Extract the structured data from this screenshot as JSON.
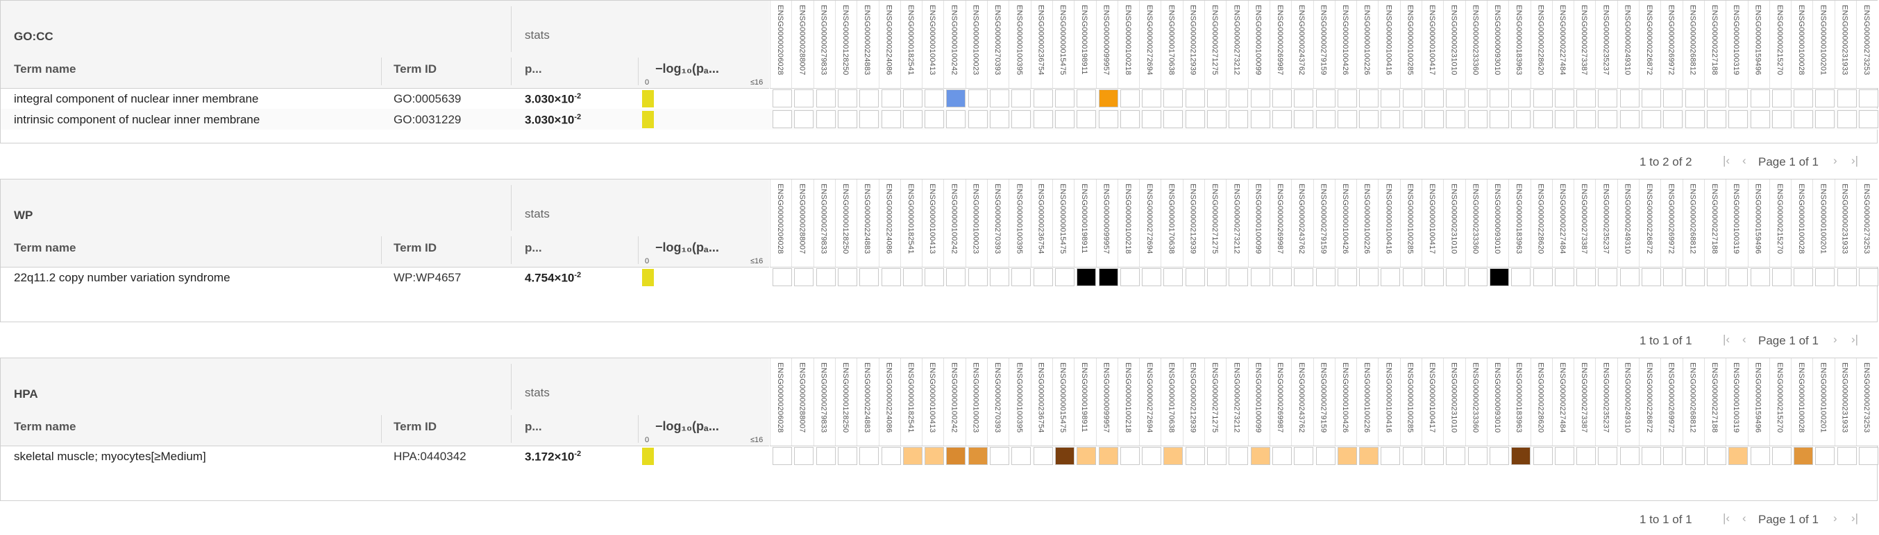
{
  "genes_a": [
    "ENSG00000206028",
    "ENSG00000288007",
    "ENSG00000279833",
    "ENSG00000128250",
    "ENSG00000224883",
    "ENSG00000224086",
    "ENSG00000182541",
    "ENSG00000100413",
    "ENSG00000100242",
    "ENSG00000100023",
    "ENSG00000270393",
    "ENSG00000100395",
    "ENSG00000236754",
    "ENSG00000015475",
    "ENSG00000198911",
    "ENSG00000099957",
    "ENSG00000100218",
    "ENSG00000272694",
    "ENSG00000170638",
    "ENSG00000212939",
    "ENSG00000271275",
    "ENSG00000273212",
    "ENSG00000100099",
    "ENSG00000269987",
    "ENSG00000243762",
    "ENSG00000279159",
    "ENSG00000100426",
    "ENSG00000100226",
    "ENSG00000100416",
    "ENSG00000100285",
    "ENSG00000100417",
    "ENSG00000231010",
    "ENSG00000233360",
    "ENSG00000093010",
    "ENSG00000183963",
    "ENSG00000228620",
    "ENSG00000227484",
    "ENSG00000273387",
    "ENSG00000235237",
    "ENSG00000249310",
    "ENSG00000226872",
    "ENSG00000269972",
    "ENSG00000268812",
    "ENSG00000227188",
    "ENSG00000100319",
    "ENSG00000159496",
    "ENSG00000215270",
    "ENSG00000100028",
    "ENSG00000100201",
    "ENSG00000231933",
    "ENSG00000273253"
  ],
  "genes_b": [
    "ENSG00000206028",
    "ENSG00000288007",
    "ENSG00000279833",
    "ENSG00000128250",
    "ENSG00000224883",
    "ENSG00000224086",
    "ENSG00000182541",
    "ENSG00000100413",
    "ENSG00000100242",
    "ENSG00000100023",
    "ENSG00000270393",
    "ENSG00000100395",
    "ENSG00000236754",
    "ENSG00000015475",
    "ENSG00000198911",
    "ENSG00000099957",
    "ENSG00000100218",
    "ENSG00000272694",
    "ENSG00000170638",
    "ENSG00000212939",
    "ENSG00000271275",
    "ENSG00000273212",
    "ENSG00000100099",
    "ENSG00000269987",
    "ENSG00000243762",
    "ENSG00000279159",
    "ENSG00000100426",
    "ENSG00000100226",
    "ENSG00000100416",
    "ENSG00000100285",
    "ENSG00000100417",
    "ENSG00000231010",
    "ENSG00000233360",
    "ENSG00000093010",
    "ENSG00000183963",
    "ENSG00000228620",
    "ENSG00000227484",
    "ENSG00000273387",
    "ENSG00000235237",
    "ENSG00000249310",
    "ENSG00000226872",
    "ENSG00000269972",
    "ENSG00000268812",
    "ENSG00000227188",
    "ENSG00000100319",
    "ENSG00000159496",
    "ENSG00000215270",
    "ENSG00000100028",
    "ENSG00000100201",
    "ENSG00000231933",
    "ENSG00000273253"
  ],
  "headers": {
    "stats": "stats",
    "term_name": "Term name",
    "term_id": "Term ID",
    "p": "p...",
    "log_label": "−log₁₀(pₐ...",
    "log_min": "0",
    "log_max": "≤16"
  },
  "panels": [
    {
      "source": "GO:CC",
      "pager_count": "1 to 2 of 2",
      "pager_page": "Page 1 of 1",
      "rows": [
        {
          "name": "integral component of nuclear inner membrane",
          "id": "GO:0005639",
          "p_mant": "3.030×10",
          "p_exp": "-2",
          "colored": {
            "8": "#6a96e6",
            "15": "#f59b0c"
          }
        },
        {
          "name": "intrinsic component of nuclear inner membrane",
          "id": "GO:0031229",
          "p_mant": "3.030×10",
          "p_exp": "-2",
          "colored": {}
        }
      ]
    },
    {
      "source": "WP",
      "pager_count": "1 to 1 of 1",
      "pager_page": "Page 1 of 1",
      "rows": [
        {
          "name": "22q11.2 copy number variation syndrome",
          "id": "WP:WP4657",
          "p_mant": "4.754×10",
          "p_exp": "-2",
          "colored": {
            "14": "#000000",
            "15": "#000000",
            "33": "#000000"
          }
        }
      ]
    },
    {
      "source": "HPA",
      "pager_count": "1 to 1 of 1",
      "pager_page": "Page 1 of 1",
      "rows": [
        {
          "name": "skeletal muscle; myocytes[≥Medium]",
          "id": "HPA:0440342",
          "p_mant": "3.172×10",
          "p_exp": "-2",
          "colored": {
            "6": "#fdc882",
            "7": "#fdc882",
            "8": "#d98a30",
            "9": "#e0953a",
            "13": "#7a3f0e",
            "14": "#fdc882",
            "15": "#fdc882",
            "18": "#fdc882",
            "22": "#fdc882",
            "26": "#fdc882",
            "27": "#fdc882",
            "34": "#7a3f0e",
            "44": "#fdc882",
            "47": "#e0953a"
          }
        }
      ]
    }
  ],
  "pager_icons": [
    "first-page-icon",
    "prev-page-icon",
    "next-page-icon",
    "last-page-icon"
  ]
}
